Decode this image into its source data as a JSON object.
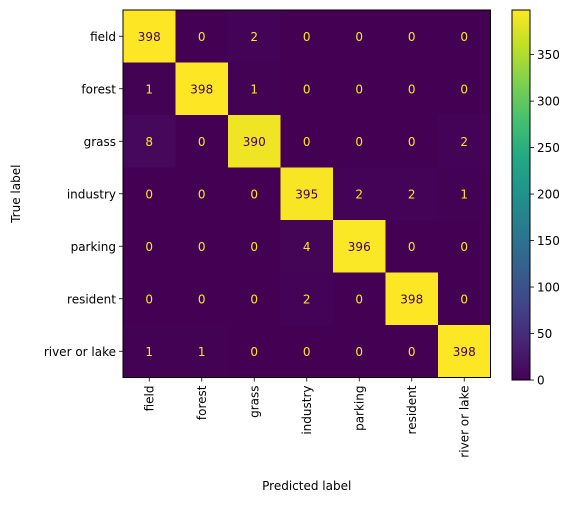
{
  "chart_data": {
    "type": "heatmap",
    "title": "",
    "xlabel": "Predicted label",
    "ylabel": "True label",
    "x_categories": [
      "field",
      "forest",
      "grass",
      "industry",
      "parking",
      "resident",
      "river or lake"
    ],
    "y_categories": [
      "field",
      "forest",
      "grass",
      "industry",
      "parking",
      "resident",
      "river or lake"
    ],
    "values": [
      [
        398,
        0,
        2,
        0,
        0,
        0,
        0
      ],
      [
        1,
        398,
        1,
        0,
        0,
        0,
        0
      ],
      [
        8,
        0,
        390,
        0,
        0,
        0,
        2
      ],
      [
        0,
        0,
        0,
        395,
        2,
        2,
        1
      ],
      [
        0,
        0,
        0,
        4,
        396,
        0,
        0
      ],
      [
        0,
        0,
        0,
        2,
        0,
        398,
        0
      ],
      [
        1,
        1,
        0,
        0,
        0,
        0,
        398
      ]
    ],
    "colormap": "viridis",
    "vmin": 0,
    "vmax": 398,
    "colorbar_ticks": [
      0,
      50,
      100,
      150,
      200,
      250,
      300,
      350
    ],
    "grid": false,
    "legend": "colorbar-right",
    "text_color_low": "#fde725",
    "text_color_high": "#440154"
  }
}
